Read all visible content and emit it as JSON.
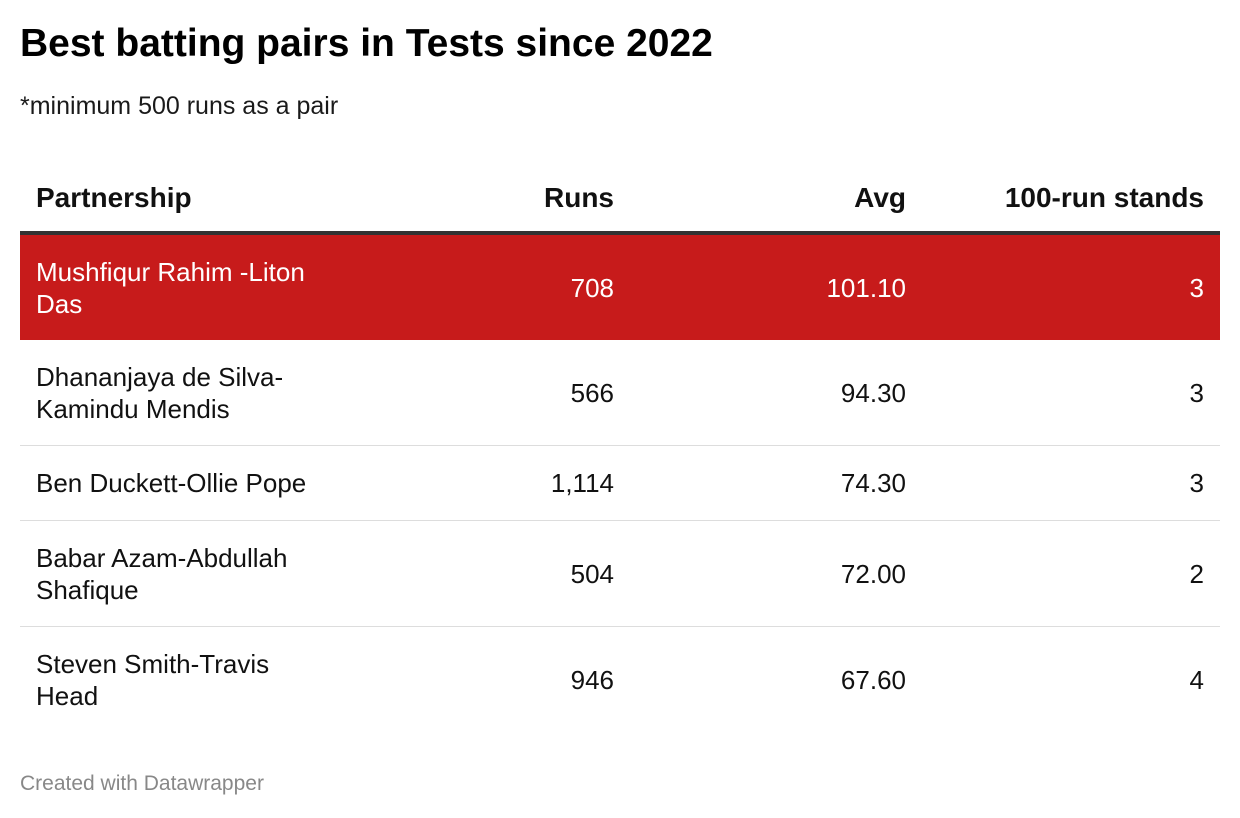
{
  "title": "Best batting pairs in Tests since 2022",
  "subtitle": "*minimum 500 runs as a pair",
  "footer": "Created with Datawrapper",
  "colors": {
    "highlight_row": "#c71b1b",
    "header_rule": "#333333",
    "row_divider": "#dddddd",
    "footer_text": "#888888"
  },
  "chart_data": {
    "type": "table",
    "title": "Best batting pairs in Tests since 2022",
    "subtitle": "*minimum 500 runs as a pair",
    "columns": [
      "Partnership",
      "Runs",
      "Avg",
      "100-run stands"
    ],
    "rows": [
      [
        "Mushfiqur Rahim -Liton Das",
        "708",
        "101.10",
        "3"
      ],
      [
        "Dhananjaya de Silva-Kamindu Mendis",
        "566",
        "94.30",
        "3"
      ],
      [
        "Ben Duckett-Ollie Pope",
        "1,114",
        "74.30",
        "3"
      ],
      [
        "Babar Azam-Abdullah Shafique",
        "504",
        "72.00",
        "2"
      ],
      [
        "Steven Smith-Travis Head",
        "946",
        "67.60",
        "4"
      ]
    ],
    "highlighted_row": 0
  }
}
